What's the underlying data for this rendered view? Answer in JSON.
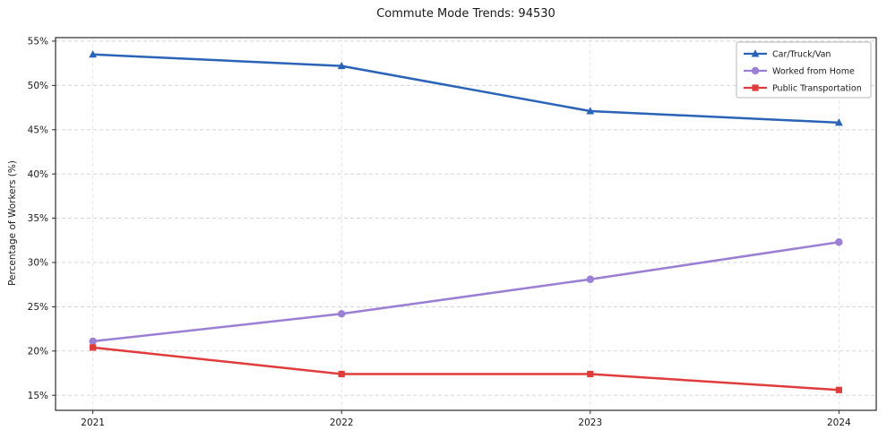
{
  "chart_data": {
    "type": "line",
    "title": "Commute Mode Trends: 94530",
    "xlabel": "",
    "ylabel": "Percentage of Workers (%)",
    "x": [
      2021,
      2022,
      2023,
      2024
    ],
    "x_tick_labels": [
      "2021",
      "2022",
      "2023",
      "2024"
    ],
    "y_ticks": [
      15,
      20,
      25,
      30,
      35,
      40,
      45,
      50,
      55
    ],
    "y_tick_suffix": "%",
    "ylim": [
      13.3,
      55.4
    ],
    "xlim": [
      2020.85,
      2024.15
    ],
    "grid": true,
    "legend_position": "top-right",
    "series": [
      {
        "name": "Car/Truck/Van",
        "marker": "triangle",
        "color": "#2a63b8",
        "values": [
          53.5,
          52.2,
          47.1,
          45.8
        ]
      },
      {
        "name": "Worked from Home",
        "marker": "circle",
        "color": "#9b7fd4",
        "values": [
          21.1,
          24.2,
          28.1,
          32.3
        ]
      },
      {
        "name": "Public Transportation",
        "marker": "square",
        "color": "#e03c3c",
        "values": [
          20.4,
          17.4,
          17.4,
          15.6
        ]
      }
    ]
  }
}
